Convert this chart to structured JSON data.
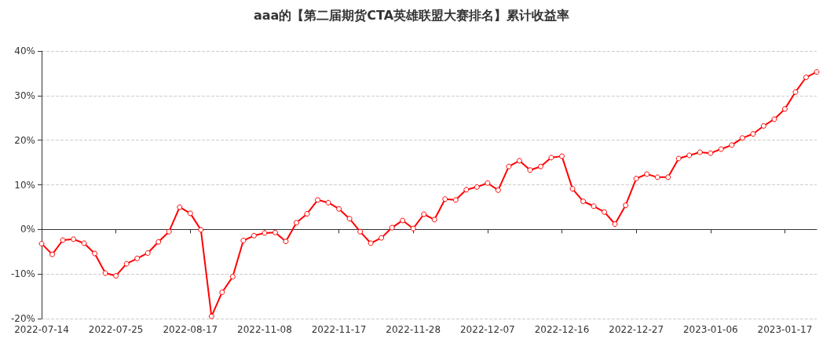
{
  "chart_data": {
    "type": "line",
    "title": "aaa的【第二届期货CTA英雄联盟大赛排名】累计收益率",
    "categories": [
      "2022-07-14",
      null,
      null,
      null,
      null,
      null,
      null,
      "2022-07-25",
      null,
      null,
      null,
      null,
      null,
      null,
      "2022-08-17",
      null,
      null,
      null,
      null,
      null,
      null,
      "2022-11-08",
      null,
      null,
      null,
      null,
      null,
      null,
      "2022-11-17",
      null,
      null,
      null,
      null,
      null,
      null,
      "2022-11-28",
      null,
      null,
      null,
      null,
      null,
      null,
      "2022-12-07",
      null,
      null,
      null,
      null,
      null,
      null,
      "2022-12-16",
      null,
      null,
      null,
      null,
      null,
      null,
      "2022-12-27",
      null,
      null,
      null,
      null,
      null,
      null,
      "2023-01-06",
      null,
      null,
      null,
      null,
      null,
      null,
      "2023-01-17",
      null,
      null,
      null
    ],
    "series": [
      {
        "color": "#ff0000",
        "values": [
          -3.2,
          -5.6,
          -2.4,
          -2.2,
          -3.1,
          -5.4,
          -9.8,
          -10.4,
          -7.7,
          -6.5,
          -5.3,
          -2.8,
          -0.5,
          5.0,
          3.6,
          -0.1,
          -19.5,
          -14.1,
          -10.6,
          -2.5,
          -1.4,
          -0.8,
          -0.7,
          -2.7,
          1.5,
          3.5,
          6.6,
          6.0,
          4.6,
          2.4,
          -0.5,
          -3.1,
          -1.9,
          0.4,
          2.0,
          0.2,
          3.4,
          2.2,
          6.8,
          6.6,
          8.9,
          9.5,
          10.4,
          8.8,
          14.1,
          15.4,
          13.3,
          14.1,
          16.1,
          16.4,
          9.1,
          6.3,
          5.2,
          3.9,
          1.2,
          5.4,
          11.4,
          12.4,
          11.7,
          11.7,
          15.9,
          16.6,
          17.3,
          17.1,
          18.0,
          18.9,
          20.5,
          21.4,
          23.2,
          24.7,
          27.0,
          30.8,
          34.1,
          35.3
        ]
      }
    ],
    "ylim": [
      -20,
      40
    ],
    "yticks": [
      {
        "value": -20,
        "label": "-20%"
      },
      {
        "value": -10,
        "label": "-10%"
      },
      {
        "value": 0,
        "label": "0%"
      },
      {
        "value": 10,
        "label": "10%"
      },
      {
        "value": 20,
        "label": "20%"
      },
      {
        "value": 30,
        "label": "30%"
      },
      {
        "value": 40,
        "label": "40%"
      }
    ],
    "grid": "y",
    "marker": "circle",
    "line_style": "solid"
  }
}
